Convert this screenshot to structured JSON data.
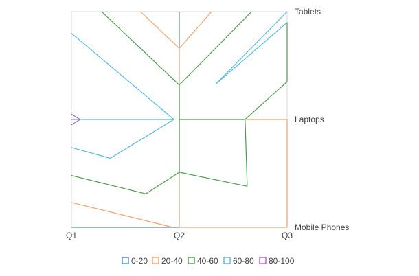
{
  "chart_data": {
    "type": "contour",
    "title": "",
    "x": [
      "Q1",
      "Q2",
      "Q3"
    ],
    "y": [
      "Mobile Phones",
      "Laptops",
      "Tablets"
    ],
    "xlim": [
      0,
      2
    ],
    "ylim": [
      0,
      2
    ],
    "legend": {
      "placement": "bottom",
      "items": [
        {
          "name": "0-20",
          "color": "#4a8fd1"
        },
        {
          "name": "20-40",
          "color": "#f4a06a"
        },
        {
          "name": "40-60",
          "color": "#4c9a4c"
        },
        {
          "name": "60-80",
          "color": "#56b8de"
        },
        {
          "name": "80-100",
          "color": "#b65ac4"
        }
      ]
    },
    "contours": [
      {
        "band": "0-20",
        "lines": [
          [
            [
              0.0,
              0.0
            ],
            [
              1.0,
              0.0
            ]
          ],
          [
            [
              1.0,
              1.66
            ],
            [
              1.0,
              2.0
            ]
          ]
        ]
      },
      {
        "band": "20-40",
        "lines": [
          [
            [
              0.0,
              0.23
            ],
            [
              0.94,
              0.0
            ]
          ],
          [
            [
              1.0,
              0.0
            ],
            [
              2.0,
              0.0
            ]
          ],
          [
            [
              2.0,
              0.0
            ],
            [
              2.0,
              1.0
            ]
          ],
          [
            [
              2.0,
              1.0
            ],
            [
              1.62,
              1.0
            ]
          ],
          [
            [
              1.0,
              0.0
            ],
            [
              1.0,
              1.66
            ]
          ],
          [
            [
              0.64,
              2.0
            ],
            [
              1.0,
              1.66
            ]
          ],
          [
            [
              1.0,
              1.66
            ],
            [
              1.3,
              2.0
            ]
          ]
        ]
      },
      {
        "band": "40-60",
        "lines": [
          [
            [
              0.0,
              0.48
            ],
            [
              0.69,
              0.31
            ]
          ],
          [
            [
              0.69,
              0.31
            ],
            [
              1.0,
              0.51
            ]
          ],
          [
            [
              1.0,
              0.51
            ],
            [
              1.63,
              0.38
            ]
          ],
          [
            [
              1.63,
              0.38
            ],
            [
              1.61,
              1.0
            ]
          ],
          [
            [
              1.0,
              0.51
            ],
            [
              1.0,
              1.32
            ]
          ],
          [
            [
              1.0,
              1.0
            ],
            [
              1.61,
              1.0
            ]
          ],
          [
            [
              1.61,
              1.0
            ],
            [
              2.0,
              1.35
            ]
          ],
          [
            [
              2.0,
              1.35
            ],
            [
              2.0,
              1.9
            ]
          ],
          [
            [
              0.28,
              2.0
            ],
            [
              1.0,
              1.32
            ]
          ],
          [
            [
              1.0,
              1.32
            ],
            [
              1.67,
              2.0
            ]
          ]
        ]
      },
      {
        "band": "60-80",
        "lines": [
          [
            [
              0.0,
              0.74
            ],
            [
              0.36,
              0.64
            ]
          ],
          [
            [
              0.36,
              0.64
            ],
            [
              0.95,
              1.0
            ]
          ],
          [
            [
              0.0,
              1.0
            ],
            [
              0.95,
              1.0
            ]
          ],
          [
            [
              0.95,
              1.0
            ],
            [
              0.0,
              1.8
            ]
          ],
          [
            [
              1.34,
              1.33
            ],
            [
              2.0,
              2.0
            ]
          ],
          [
            [
              1.34,
              1.33
            ],
            [
              2.0,
              1.9
            ]
          ]
        ]
      },
      {
        "band": "80-100",
        "lines": [
          [
            [
              0.0,
              1.05
            ],
            [
              0.08,
              1.0
            ]
          ],
          [
            [
              0.08,
              1.0
            ],
            [
              0.0,
              0.95
            ]
          ]
        ]
      }
    ]
  }
}
